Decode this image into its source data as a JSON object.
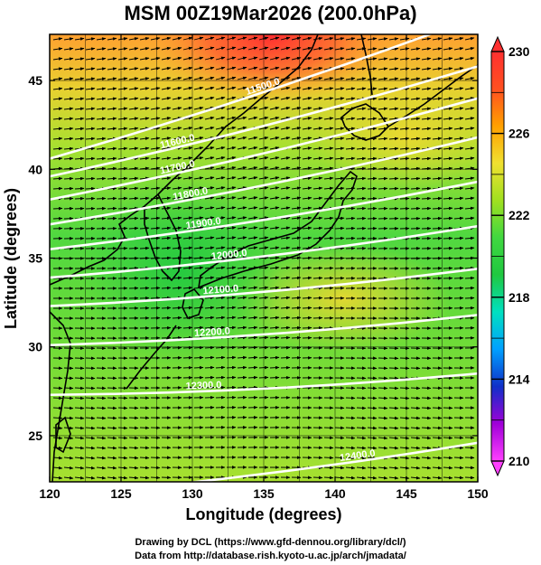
{
  "chart_data": {
    "type": "heatmap",
    "title": "MSM 00Z19Mar2026 (200.0hPa)",
    "xlabel": "Longitude (degrees)",
    "ylabel": "Latitude  (degrees)",
    "xlim": [
      120,
      150
    ],
    "ylim": [
      22.4,
      47.6
    ],
    "x_ticks": [
      120,
      125,
      130,
      135,
      140,
      145,
      150
    ],
    "y_ticks": [
      25,
      30,
      35,
      40,
      45
    ],
    "colorbar": {
      "min": 210,
      "max": 230,
      "tick_labels": [
        210,
        214,
        218,
        222,
        226,
        230
      ],
      "colors": [
        "#ff40ff",
        "#a000d8",
        "#1030c8",
        "#00a0ff",
        "#00e0c0",
        "#20c840",
        "#40d840",
        "#a0e020",
        "#f0e030",
        "#ffa000",
        "#ff5020",
        "#ff3030"
      ]
    },
    "contours": [
      {
        "label": "11500.0",
        "lat_at_lon_120": 40.6,
        "lat_at_lon_150": 48.6
      },
      {
        "label": "11600.0",
        "lat_at_lon_120": 39.6,
        "lat_at_lon_150": 45.8
      },
      {
        "label": "11700.0",
        "lat_at_lon_120": 38.3,
        "lat_at_lon_150": 44.0
      },
      {
        "label": "11800.0",
        "lat_at_lon_120": 36.9,
        "lat_at_lon_150": 41.8
      },
      {
        "label": "11900.0",
        "lat_at_lon_120": 35.5,
        "lat_at_lon_150": 39.3
      },
      {
        "label": "12000.0",
        "lat_at_lon_120": 33.9,
        "lat_at_lon_150": 36.8
      },
      {
        "label": "12100.0",
        "lat_at_lon_120": 32.3,
        "lat_at_lon_150": 34.4
      },
      {
        "label": "12200.0",
        "lat_at_lon_120": 30.1,
        "lat_at_lon_150": 31.8
      },
      {
        "label": "12300.0",
        "lat_at_lon_120": 27.3,
        "lat_at_lon_150": 28.5
      },
      {
        "label": "12400.0",
        "lat_at_lon_120": 21.6,
        "lat_at_lon_150": 24.6
      }
    ],
    "grid": true,
    "wind_vectors": true
  },
  "credits": {
    "line1": "Drawing by DCL (https://www.gfd-dennou.org/library/dcl/)",
    "line2": "Data from http://database.rish.kyoto-u.ac.jp/arch/jmadata/"
  }
}
